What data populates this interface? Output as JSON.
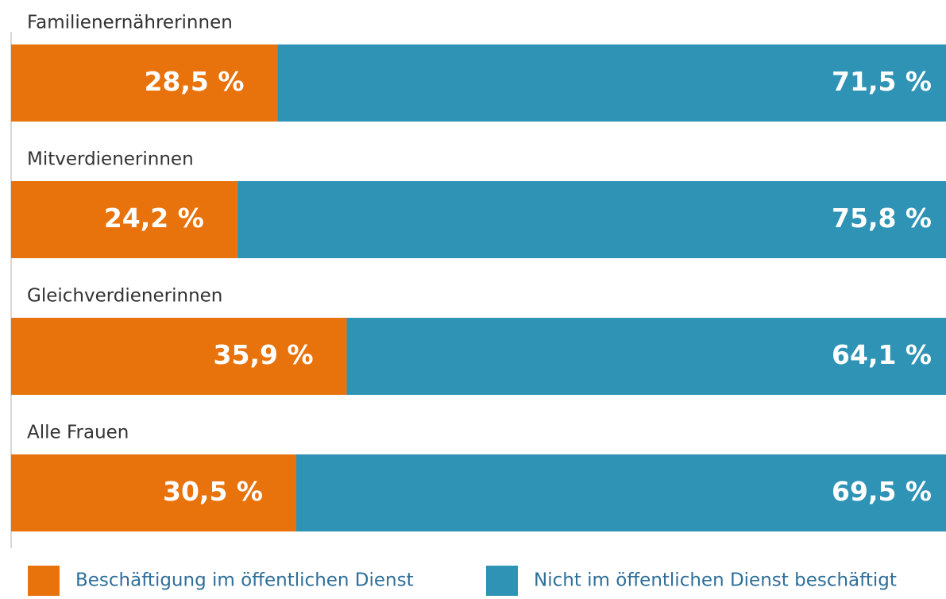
{
  "chart_data": {
    "type": "bar",
    "orientation": "horizontal",
    "stacked": true,
    "categories": [
      "Familienernährerinnen",
      "Mitverdienerinnen",
      "Gleichverdienerinnen",
      "Alle Frauen"
    ],
    "series": [
      {
        "name": "Beschäftigung im öffentlichen Dienst",
        "color": "#e8730c",
        "values": [
          28.5,
          24.2,
          35.9,
          30.5
        ],
        "value_labels": [
          "28,5 %",
          "24,2 %",
          "35,9 %",
          "30,5 %"
        ]
      },
      {
        "name": "Nicht im öffentlichen Dienst beschäftigt",
        "color": "#2e93b5",
        "values": [
          71.5,
          75.8,
          64.1,
          69.5
        ],
        "value_labels": [
          "71,5 %",
          "75,8 %",
          "64,1 %",
          "69,5 %"
        ]
      }
    ],
    "xlim": [
      0,
      100
    ],
    "legend": "bottom"
  }
}
